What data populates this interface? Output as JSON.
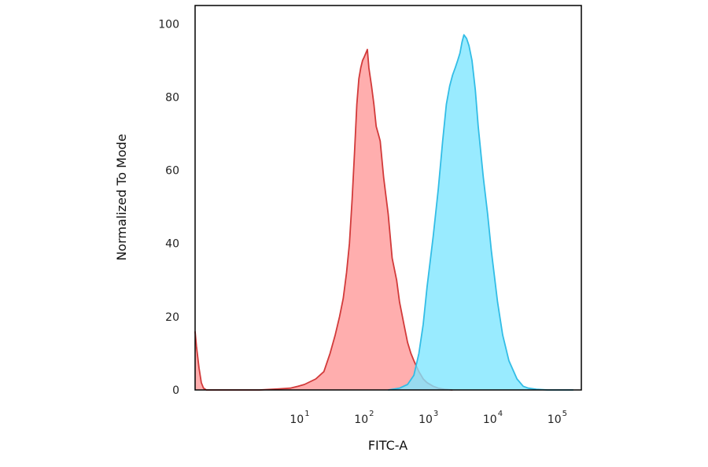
{
  "chart_data": {
    "type": "area",
    "xlabel": "FITC-A",
    "ylabel": "Normalized To Mode",
    "x_scale": "log",
    "xlim": [
      0.2,
      200000
    ],
    "ylim": [
      0,
      105
    ],
    "grid": false,
    "x_ticks": [
      {
        "value": 10,
        "base": "10",
        "exp": "1"
      },
      {
        "value": 100,
        "base": "10",
        "exp": "2"
      },
      {
        "value": 1000,
        "base": "10",
        "exp": "3"
      },
      {
        "value": 10000,
        "base": "10",
        "exp": "4"
      },
      {
        "value": 100000,
        "base": "10",
        "exp": "5"
      }
    ],
    "y_ticks": [
      {
        "value": 0,
        "label": "0"
      },
      {
        "value": 20,
        "label": "20"
      },
      {
        "value": 40,
        "label": "40"
      },
      {
        "value": 60,
        "label": "60"
      },
      {
        "value": 80,
        "label": "80"
      },
      {
        "value": 100,
        "label": "100"
      }
    ],
    "series": [
      {
        "fill": "#ff9a9a",
        "stroke": "#d23a3a",
        "x": [
          0.2,
          0.21,
          0.23,
          0.25,
          0.27,
          0.3,
          0.5,
          2,
          4,
          6,
          8,
          10,
          15,
          20,
          25,
          30,
          35,
          40,
          45,
          50,
          55,
          60,
          65,
          70,
          75,
          80,
          85,
          90,
          95,
          100,
          110,
          120,
          130,
          140,
          150,
          170,
          200,
          230,
          270,
          300,
          350,
          400,
          450,
          500,
          600,
          700,
          800,
          1000,
          1200,
          1500,
          2000
        ],
        "y": [
          16,
          12,
          6,
          2,
          0.5,
          0,
          0,
          0,
          0.3,
          0.5,
          1,
          1.5,
          3,
          5,
          10,
          15,
          20,
          25,
          32,
          40,
          52,
          65,
          78,
          85,
          88,
          90,
          91,
          92,
          93,
          88,
          83,
          78,
          72,
          70,
          68,
          58,
          48,
          36,
          30,
          24,
          18,
          13,
          10,
          8,
          5,
          3,
          2,
          1,
          0.5,
          0.2,
          0
        ]
      },
      {
        "fill": "#80e6ff",
        "stroke": "#32bde6",
        "x": [
          200,
          300,
          400,
          500,
          600,
          700,
          800,
          1000,
          1200,
          1400,
          1600,
          1800,
          2000,
          2200,
          2400,
          2600,
          2800,
          3000,
          3300,
          3600,
          4000,
          4500,
          5000,
          6000,
          7000,
          8000,
          10000,
          12000,
          15000,
          20000,
          25000,
          30000,
          40000,
          60000,
          100000,
          150000
        ],
        "y": [
          0,
          0.5,
          1.5,
          4,
          10,
          18,
          28,
          42,
          55,
          68,
          78,
          83,
          86,
          88,
          90,
          92,
          95,
          97,
          96,
          94,
          90,
          82,
          72,
          58,
          48,
          38,
          24,
          15,
          8,
          3,
          1,
          0.5,
          0.2,
          0,
          0,
          0
        ]
      }
    ]
  }
}
